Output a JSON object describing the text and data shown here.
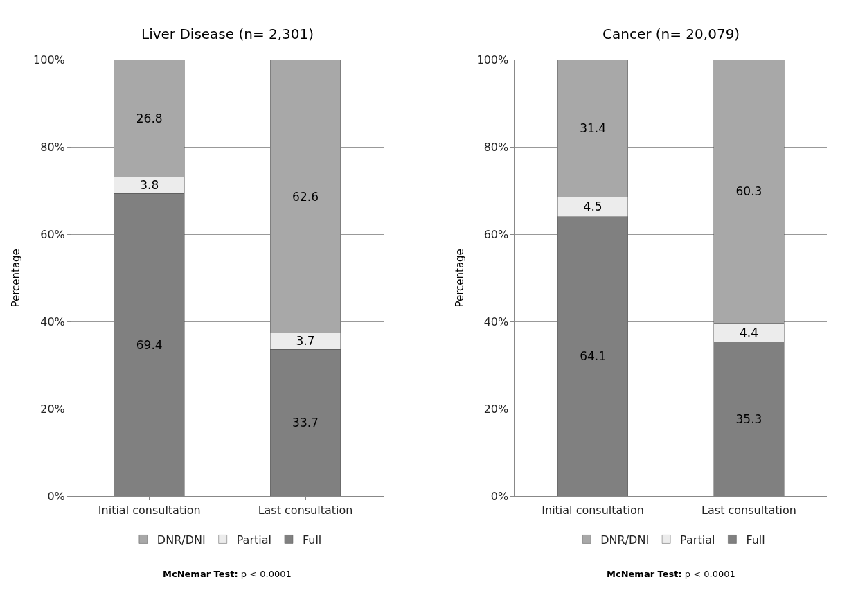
{
  "chart_data": [
    {
      "type": "bar",
      "title": "Liver Disease (n= 2,301)",
      "ylabel": "Percentage",
      "categories": [
        "Initial consultation",
        "Last consultation"
      ],
      "stacked": true,
      "data_labels": true,
      "grid": "y",
      "legend": "bottom",
      "ylim": [
        0,
        100
      ],
      "yticks": [
        {
          "value": 0,
          "label": "0%"
        },
        {
          "value": 20,
          "label": "20%"
        },
        {
          "value": 40,
          "label": "40%"
        },
        {
          "value": 60,
          "label": "60%"
        },
        {
          "value": 80,
          "label": "80%"
        },
        {
          "value": 100,
          "label": "100%"
        }
      ],
      "series": [
        {
          "name": "Full",
          "color": "#808080",
          "values": [
            69.4,
            33.7
          ]
        },
        {
          "name": "Partial",
          "color": "#ececec",
          "values": [
            3.8,
            3.7
          ]
        },
        {
          "name": "DNR/DNI",
          "color": "#a8a8a8",
          "values": [
            26.8,
            62.6
          ]
        }
      ],
      "annotations": [
        "McNemar Test: p < 0.0001"
      ]
    },
    {
      "type": "bar",
      "title": "Cancer (n= 20,079)",
      "ylabel": "Percentage",
      "categories": [
        "Initial consultation",
        "Last consultation"
      ],
      "stacked": true,
      "data_labels": true,
      "grid": "y",
      "legend": "bottom",
      "ylim": [
        0,
        100
      ],
      "yticks": [
        {
          "value": 0,
          "label": "0%"
        },
        {
          "value": 20,
          "label": "20%"
        },
        {
          "value": 40,
          "label": "40%"
        },
        {
          "value": 60,
          "label": "60%"
        },
        {
          "value": 80,
          "label": "80%"
        },
        {
          "value": 100,
          "label": "100%"
        }
      ],
      "series": [
        {
          "name": "Full",
          "color": "#808080",
          "values": [
            64.1,
            35.3
          ]
        },
        {
          "name": "Partial",
          "color": "#ececec",
          "values": [
            4.5,
            4.4
          ]
        },
        {
          "name": "DNR/DNI",
          "color": "#a8a8a8",
          "values": [
            31.4,
            60.3
          ]
        }
      ],
      "annotations": [
        "McNemar Test: p < 0.0001"
      ]
    }
  ]
}
